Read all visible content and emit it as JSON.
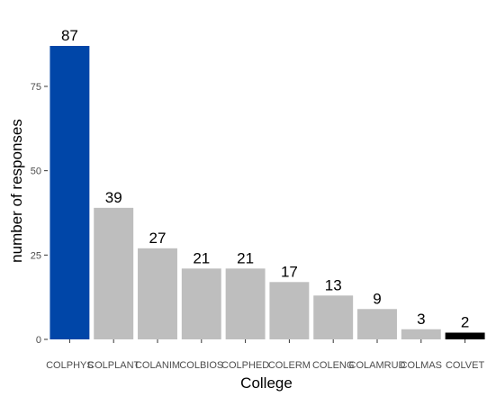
{
  "chart_data": {
    "type": "bar",
    "xlabel": "College",
    "ylabel": "number of responses",
    "ylim": [
      0,
      87
    ],
    "yticks": [
      0,
      25,
      50,
      75
    ],
    "categories": [
      "COLPHYS",
      "COLPLANT",
      "COLANIM",
      "COLBIOS",
      "COLPHED",
      "COLERM",
      "COLENG",
      "COLAMRUD",
      "COLMAS",
      "COLVET"
    ],
    "values": [
      87,
      39,
      27,
      21,
      21,
      17,
      13,
      9,
      3,
      2
    ],
    "bar_colors": [
      "#0046a8",
      "#bebebe",
      "#bebebe",
      "#bebebe",
      "#bebebe",
      "#bebebe",
      "#bebebe",
      "#bebebe",
      "#bebebe",
      "#000000"
    ],
    "grid": false,
    "legend": "none"
  }
}
